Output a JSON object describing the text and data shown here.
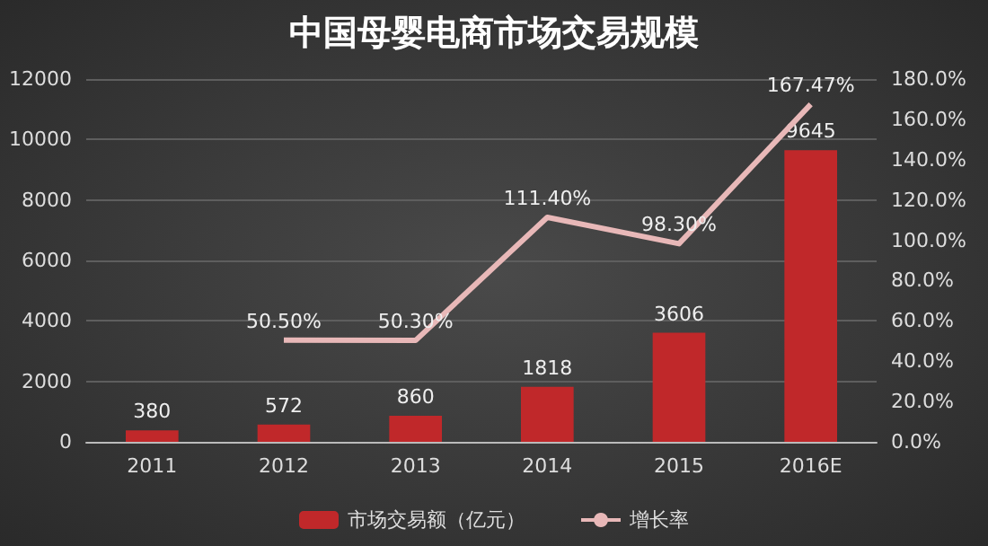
{
  "chart_data": {
    "type": "bar",
    "title": "中国母婴电商市场交易规模",
    "categories": [
      "2011",
      "2012",
      "2013",
      "2014",
      "2015",
      "2016E"
    ],
    "series": [
      {
        "name": "市场交易额（亿元）",
        "color": "#c0282a",
        "values": [
          380,
          572,
          860,
          1818,
          3606,
          9645
        ],
        "value_labels": [
          "380",
          "572",
          "860",
          "1818",
          "3606",
          "9645"
        ]
      },
      {
        "name": "增长率",
        "type": "line",
        "axis": "y2",
        "color": "#e8b8b8",
        "values": [
          null,
          50.5,
          50.3,
          111.4,
          98.3,
          167.47
        ],
        "value_labels": [
          null,
          "50.50%",
          "50.30%",
          "111.40%",
          "98.30%",
          "167.47%"
        ]
      }
    ],
    "ylim": [
      0,
      12000
    ],
    "yticks": [
      0,
      2000,
      4000,
      6000,
      8000,
      10000,
      12000
    ],
    "y2lim": [
      0,
      180
    ],
    "y2ticks": [
      {
        "value": 0,
        "label": "0.0%"
      },
      {
        "value": 20,
        "label": "20.0%"
      },
      {
        "value": 40,
        "label": "40.0%"
      },
      {
        "value": 60,
        "label": "60.0%"
      },
      {
        "value": 80,
        "label": "80.0%"
      },
      {
        "value": 100,
        "label": "100.0%"
      },
      {
        "value": 120,
        "label": "120.0%"
      },
      {
        "value": 140,
        "label": "140.0%"
      },
      {
        "value": 160,
        "label": "160.0%"
      },
      {
        "value": 180,
        "label": "180.0%"
      }
    ],
    "grid": "y",
    "legend": "bottom",
    "marker": "none"
  }
}
